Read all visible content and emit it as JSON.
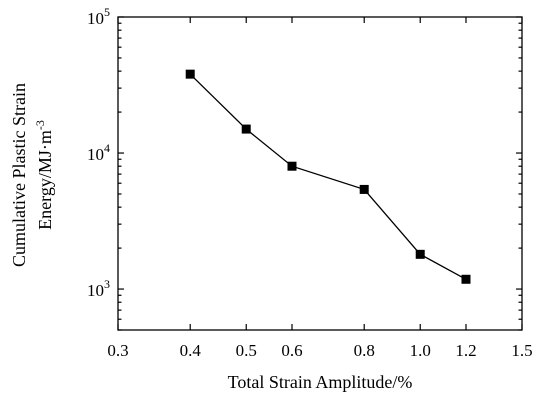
{
  "chart_data": {
    "type": "line",
    "title": "",
    "xlabel": "Total Strain Amplitude/%",
    "ylabel_lines": [
      "Cumulative Plastic Strain",
      "Energy/MJ·m"
    ],
    "ylabel_superscript": "-3",
    "x_scale": "log",
    "y_scale": "log",
    "xlim": [
      0.3,
      1.5
    ],
    "ylim": [
      500,
      100000
    ],
    "x_ticks": [
      0.3,
      0.4,
      0.5,
      0.6,
      0.8,
      1.0,
      1.2,
      1.5
    ],
    "x_tick_labels": [
      "0.3",
      "0.4",
      "0.5",
      "0.6",
      "0.8",
      "1.0",
      "1.2",
      "1.5"
    ],
    "y_ticks": [
      {
        "value": 1000,
        "base": "10",
        "exp": "3"
      },
      {
        "value": 10000,
        "base": "10",
        "exp": "4"
      },
      {
        "value": 100000,
        "base": "10",
        "exp": "5"
      }
    ],
    "grid": false,
    "legend": "none",
    "marker": "square",
    "color": "#000000",
    "series": [
      {
        "x": [
          0.4,
          0.5,
          0.6,
          0.8,
          1.0,
          1.2
        ],
        "y": [
          38000,
          15000,
          8000,
          5400,
          1800,
          1180
        ]
      }
    ]
  }
}
